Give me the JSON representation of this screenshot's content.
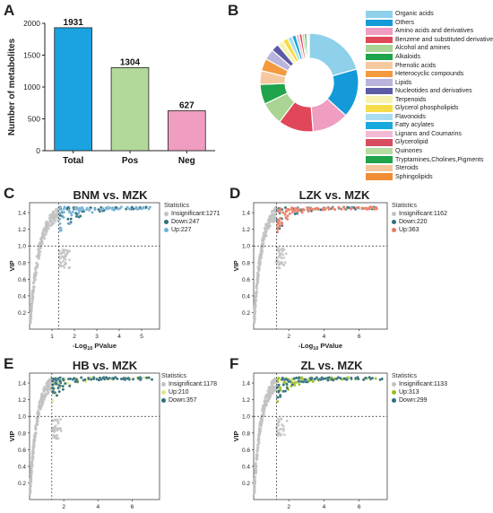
{
  "panel_labels": [
    "A",
    "B",
    "C",
    "D",
    "E",
    "F"
  ],
  "chart_data": [
    {
      "id": "A",
      "type": "bar",
      "categories": [
        "Total",
        "Pos",
        "Neg"
      ],
      "values": [
        1931,
        1304,
        627
      ],
      "colors": [
        "#1aa3e0",
        "#b3d99a",
        "#ef9dc1"
      ],
      "ylabel": "Number of metabolites",
      "ylim": [
        0,
        2000
      ],
      "yticks": [
        0,
        500,
        1000,
        1500,
        2000
      ]
    },
    {
      "id": "B",
      "type": "pie",
      "donut": true,
      "labels": [
        "Organic acids",
        "Others",
        "Amino acids and derivatives",
        "Benzene and substituted derivatives",
        "Alcohol and amines",
        "Alkaloids",
        "Phenolic acids",
        "Heterocyclic compounds",
        "Lipids",
        "Nucleotides and derivatives",
        "Terpenoids",
        "Glycerol phospholipids",
        "Flavonoids",
        "Fatty acylates",
        "Lignans and Coumarins",
        "Glycerolipid",
        "Quinones",
        "Tryptamines,Cholines,Pigments",
        "Steroids",
        "Sphingolipids"
      ],
      "values": [
        20.5,
        16,
        12,
        11.5,
        7.5,
        6.5,
        4.5,
        4,
        3.5,
        2.5,
        2,
        1.8,
        1.5,
        1.3,
        1.1,
        0.9,
        0.8,
        0.7,
        0.5,
        0.4
      ],
      "colors": [
        "#8fd0ea",
        "#149ad8",
        "#ef9dc1",
        "#e04758",
        "#a9d494",
        "#1fa34b",
        "#f6c8a0",
        "#f39a3e",
        "#b9b4dc",
        "#5d5ba5",
        "#f8f2b1",
        "#f6dc49",
        "#a8dcef",
        "#18a8dd",
        "#f3bad4",
        "#d74c5f",
        "#b6dca1",
        "#1fa34b",
        "#f5c59c",
        "#f08c33"
      ],
      "legend_placement": "right"
    },
    {
      "id": "C",
      "type": "scatter",
      "title": "BNM vs. MZK",
      "xlabel_pre": "-Log",
      "xlabel_sub": "10",
      "xlabel_post": " PValue",
      "ylabel": "VIP",
      "xlim": [
        0,
        5.8
      ],
      "ylim": [
        0,
        1.52
      ],
      "xticks": [
        1,
        2,
        3,
        4,
        5
      ],
      "yticks": [
        0.2,
        0.4,
        0.6,
        0.8,
        1.0,
        1.2,
        1.4
      ],
      "ytick_labels": [
        "0.2",
        "0.4",
        "0.6",
        "0.8",
        "1.0",
        "1.2",
        "1.4"
      ],
      "thresholds": {
        "x": 1.3,
        "y": 1.0
      },
      "legend_title": "Statistics",
      "series": [
        {
          "name": "Insignificant:1271",
          "count": 1271,
          "color": "#c2c2c2"
        },
        {
          "name": "Down:247",
          "count": 247,
          "color": "#2f6f7c"
        },
        {
          "name": "Up:227",
          "count": 227,
          "color": "#6fb1d8"
        }
      ],
      "sig_xmax": 5.4
    },
    {
      "id": "D",
      "type": "scatter",
      "title": "LZK vs. MZK",
      "xlabel_pre": "-Log",
      "xlabel_sub": "10",
      "xlabel_post": " PValue",
      "ylabel": "VIP",
      "xlim": [
        0,
        7.6
      ],
      "ylim": [
        0,
        1.52
      ],
      "xticks": [
        2,
        4,
        6
      ],
      "yticks": [
        0.2,
        0.4,
        0.6,
        0.8,
        1.0,
        1.2,
        1.4
      ],
      "ytick_labels": [
        "0.2",
        "0.4",
        "0.6",
        "0.8",
        "1.0",
        "1.2",
        "1.4"
      ],
      "thresholds": {
        "x": 1.3,
        "y": 1.0
      },
      "legend_title": "Statistics",
      "series": [
        {
          "name": "Insignificant:1162",
          "count": 1162,
          "color": "#c2c2c2"
        },
        {
          "name": "Down:220",
          "count": 220,
          "color": "#2f6f7c"
        },
        {
          "name": "Up:363",
          "count": 363,
          "color": "#e8795f"
        }
      ],
      "sig_xmax": 7.0
    },
    {
      "id": "E",
      "type": "scatter",
      "title": "HB vs. MZK",
      "xlabel_pre": "-Log",
      "xlabel_sub": "10",
      "xlabel_post": " PValue",
      "ylabel": "VIP",
      "xlim": [
        0,
        7.6
      ],
      "ylim": [
        0,
        1.52
      ],
      "xticks": [
        2,
        4,
        6
      ],
      "yticks": [
        0.2,
        0.4,
        0.6,
        0.8,
        1.0,
        1.2,
        1.4
      ],
      "ytick_labels": [
        "0.2",
        "0.4",
        "0.6",
        "0.8",
        "1.0",
        "1.2",
        "1.4"
      ],
      "thresholds": {
        "x": 1.3,
        "y": 1.0
      },
      "legend_title": "Statistics",
      "series": [
        {
          "name": "Insignificant:1178",
          "count": 1178,
          "color": "#c2c2c2"
        },
        {
          "name": "Up:210",
          "count": 210,
          "color": "#e5e58a"
        },
        {
          "name": "Down:357",
          "count": 357,
          "color": "#2f6f7c"
        }
      ],
      "sig_xmax": 7.2
    },
    {
      "id": "F",
      "type": "scatter",
      "title": "ZL vs. MZK",
      "xlabel_pre": "-Log",
      "xlabel_sub": "10",
      "xlabel_post": " PValue",
      "ylabel": "VIP",
      "xlim": [
        0,
        7.6
      ],
      "ylim": [
        0,
        1.52
      ],
      "xticks": [
        2,
        4,
        6
      ],
      "yticks": [
        0.2,
        0.4,
        0.6,
        0.8,
        1.0,
        1.2,
        1.4
      ],
      "ytick_labels": [
        "0.2",
        "0.4",
        "0.6",
        "0.8",
        "1.0",
        "1.2",
        "1.4"
      ],
      "thresholds": {
        "x": 1.3,
        "y": 1.0
      },
      "legend_title": "Statistics",
      "series": [
        {
          "name": "Insignificant:1133",
          "count": 1133,
          "color": "#c2c2c2"
        },
        {
          "name": "Up:313",
          "count": 313,
          "color": "#9bbd1f"
        },
        {
          "name": "Down:299",
          "count": 299,
          "color": "#2f6f7c"
        }
      ],
      "sig_xmax": 7.3
    }
  ]
}
